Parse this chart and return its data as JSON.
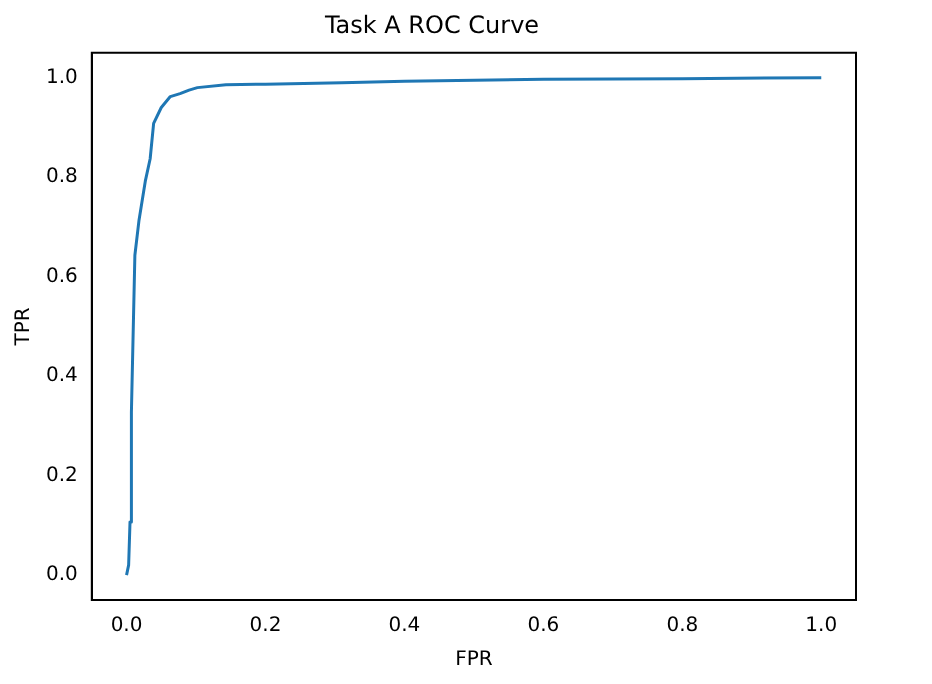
{
  "chart_data": {
    "type": "line",
    "title": "Task A ROC Curve",
    "xlabel": "FPR",
    "ylabel": "TPR",
    "x": [
      0,
      0.003,
      0.005,
      0.007,
      0.012,
      0.018,
      0.027,
      0.034,
      0.039,
      0.05,
      0.063,
      0.077,
      0.09,
      0.102,
      0.143,
      0.2,
      0.31,
      0.4,
      0.6,
      0.8,
      1.0
    ],
    "series": [
      {
        "color": "#1f77b4",
        "values": [
          0,
          0.02,
          0.107,
          0.327,
          0.643,
          0.714,
          0.792,
          0.837,
          0.908,
          0.94,
          0.962,
          0.968,
          0.975,
          0.98,
          0.986,
          0.987,
          0.99,
          0.993,
          0.997,
          0.998,
          1.0
        ]
      }
    ],
    "xlim": [
      -0.05,
      1.05
    ],
    "ylim": [
      -0.05,
      1.05
    ],
    "xticks": [
      {
        "value": 0,
        "label": "0.0"
      },
      {
        "value": 0.2,
        "label": "0.2"
      },
      {
        "value": 0.4,
        "label": "0.4"
      },
      {
        "value": 0.6,
        "label": "0.6"
      },
      {
        "value": 0.8,
        "label": "0.8"
      },
      {
        "value": 1,
        "label": "1.0"
      }
    ],
    "yticks": [
      {
        "value": 0,
        "label": "0.0"
      },
      {
        "value": 0.2,
        "label": "0.2"
      },
      {
        "value": 0.4,
        "label": "0.4"
      },
      {
        "value": 0.6,
        "label": "0.6"
      },
      {
        "value": 0.8,
        "label": "0.8"
      },
      {
        "value": 1,
        "label": "1.0"
      }
    ],
    "grid": false,
    "legend": false,
    "marker": "none",
    "line_style": "solid"
  }
}
